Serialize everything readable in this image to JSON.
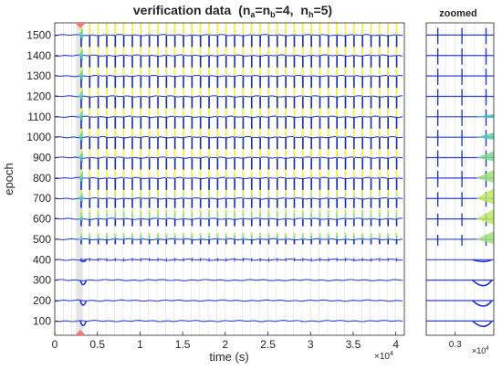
{
  "chart_data": [
    {
      "type": "line",
      "title_main": "verification data",
      "title_formula": {
        "na": "n",
        "na_sub": "a",
        "nb": "n",
        "nb_sub": "b",
        "eq1": "=4,",
        "nh": "n",
        "nh_sub": "h",
        "eq2": "=5)",
        "open": "(",
        "eqmid": "="
      },
      "xlabel": "time (s)",
      "ylabel": "epoch",
      "x_multiplier": {
        "base": "×10",
        "exp": "4"
      },
      "xlim": [
        0,
        4.1
      ],
      "ylim": [
        30,
        1560
      ],
      "x_ticks": [
        0,
        0.5,
        1,
        1.5,
        2,
        2.5,
        3,
        3.5,
        4
      ],
      "x_tick_labels": [
        "0",
        "0.5",
        "1",
        "1.5",
        "2",
        "2.5",
        "3",
        "3.5",
        "4"
      ],
      "y_ticks": [
        100,
        200,
        300,
        400,
        500,
        600,
        700,
        800,
        900,
        1000,
        1100,
        1200,
        1300,
        1400,
        1500
      ],
      "y_tick_labels": [
        "100",
        "200",
        "300",
        "400",
        "500",
        "600",
        "700",
        "800",
        "900",
        "1000",
        "1100",
        "1200",
        "1300",
        "1400",
        "1500"
      ],
      "epochs": [
        100,
        200,
        300,
        400,
        500,
        600,
        700,
        800,
        900,
        1000,
        1100,
        1200,
        1300,
        1400,
        1500
      ],
      "highlight_x": 0.3,
      "highlight_band": [
        0.25,
        0.33
      ],
      "marker_color": "#f07b7b",
      "highlight_color": "#dcdcdc",
      "colormap_low": "#1a2fe0",
      "colormap_mid": "#2cc5c5",
      "colormap_high": "#f5f53a"
    },
    {
      "type": "line",
      "title": "zoomed",
      "xlim": [
        0.27,
        0.34
      ],
      "x_ticks": [
        0.3
      ],
      "x_tick_labels": [
        "0.3"
      ],
      "x_multiplier": {
        "base": "×10",
        "exp": "4"
      },
      "epochs": [
        100,
        200,
        300,
        400,
        500,
        600,
        700,
        800,
        900,
        1000,
        1100,
        1200,
        1300,
        1400,
        1500
      ]
    }
  ]
}
